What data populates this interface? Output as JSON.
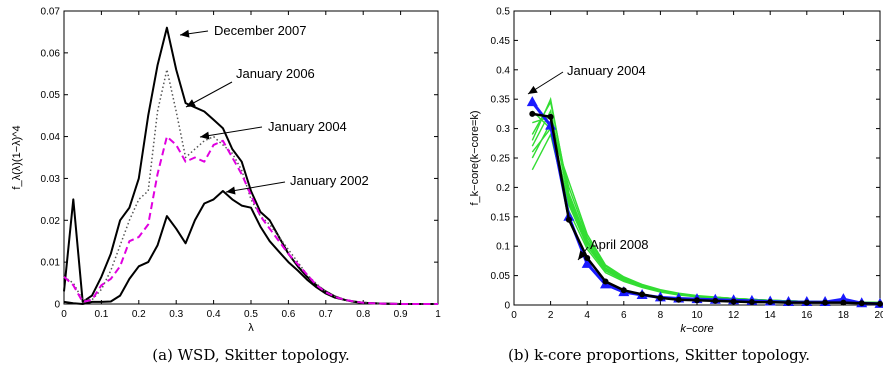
{
  "chart_data": [
    {
      "type": "line",
      "caption": "(a) WSD, Skitter topology.",
      "xlabel": "λ",
      "ylabel": "f_λ(λ)(1−λ)^4",
      "xlim": [
        0,
        1
      ],
      "ylim": [
        0,
        0.07
      ],
      "xticks": [
        "0",
        "0.1",
        "0.2",
        "0.3",
        "0.4",
        "0.5",
        "0.6",
        "0.7",
        "0.8",
        "0.9",
        "1"
      ],
      "yticks": [
        "0",
        "0.01",
        "0.02",
        "0.03",
        "0.04",
        "0.05",
        "0.06",
        "0.07"
      ],
      "annotations": [
        "December 2007",
        "January 2006",
        "January 2004",
        "January 2002"
      ],
      "series": [
        {
          "color": "#000000",
          "style": "solid",
          "x": [
            0,
            0.025,
            0.05,
            0.075,
            0.1,
            0.125,
            0.15,
            0.175,
            0.2,
            0.225,
            0.25,
            0.275,
            0.3,
            0.325,
            0.35,
            0.375,
            0.4,
            0.425,
            0.45,
            0.475,
            0.5,
            0.525,
            0.55,
            0.575,
            0.6,
            0.625,
            0.65,
            0.675,
            0.7,
            0.725,
            0.75,
            0.775,
            0.8,
            0.825,
            0.85,
            0.9,
            1
          ],
          "y": [
            0.0005,
            0.0002,
            0,
            0.0005,
            0.0005,
            0.0006,
            0.002,
            0.006,
            0.009,
            0.01,
            0.014,
            0.021,
            0.018,
            0.0145,
            0.02,
            0.024,
            0.025,
            0.027,
            0.025,
            0.0235,
            0.023,
            0.0185,
            0.015,
            0.0125,
            0.01,
            0.008,
            0.0058,
            0.004,
            0.0025,
            0.0015,
            0.001,
            0.0005,
            0.0003,
            0.0002,
            0.0001,
            0,
            0
          ]
        },
        {
          "color": "#000000",
          "style": "solid",
          "x": [
            0,
            0.025,
            0.05,
            0.075,
            0.1,
            0.125,
            0.15,
            0.175,
            0.2,
            0.225,
            0.25,
            0.275,
            0.3,
            0.325,
            0.35,
            0.375,
            0.4,
            0.425,
            0.45,
            0.475,
            0.5,
            0.525,
            0.55,
            0.575,
            0.6,
            0.625,
            0.65,
            0.675,
            0.7,
            0.725,
            0.75,
            0.775,
            0.8,
            0.825,
            0.85,
            0.9,
            1
          ],
          "y": [
            0.003,
            0.025,
            0.0005,
            0.002,
            0.0065,
            0.012,
            0.02,
            0.023,
            0.03,
            0.045,
            0.057,
            0.066,
            0.056,
            0.048,
            0.047,
            0.046,
            0.044,
            0.042,
            0.037,
            0.034,
            0.027,
            0.022,
            0.02,
            0.016,
            0.012,
            0.009,
            0.0065,
            0.0045,
            0.003,
            0.0018,
            0.001,
            0.0006,
            0.0003,
            0.0002,
            0.0001,
            0,
            0
          ]
        },
        {
          "color": "#555555",
          "style": "dotted",
          "x": [
            0,
            0.025,
            0.05,
            0.075,
            0.1,
            0.125,
            0.15,
            0.175,
            0.2,
            0.225,
            0.25,
            0.275,
            0.3,
            0.325,
            0.35,
            0.375,
            0.4,
            0.425,
            0.45,
            0.475,
            0.5,
            0.525,
            0.55,
            0.575,
            0.6,
            0.625,
            0.65,
            0.675,
            0.7,
            0.725,
            0.75,
            0.775,
            0.8,
            0.825,
            0.85,
            0.9,
            1
          ],
          "y": [
            0.0065,
            0.005,
            0.001,
            0.001,
            0.0035,
            0.008,
            0.014,
            0.02,
            0.025,
            0.027,
            0.046,
            0.056,
            0.046,
            0.035,
            0.037,
            0.039,
            0.04,
            0.038,
            0.036,
            0.032,
            0.025,
            0.021,
            0.019,
            0.016,
            0.013,
            0.01,
            0.007,
            0.0048,
            0.003,
            0.0018,
            0.001,
            0.0006,
            0.0003,
            0.0002,
            0.0001,
            0,
            0
          ]
        },
        {
          "color": "#e000e0",
          "style": "dashed",
          "x": [
            0,
            0.025,
            0.05,
            0.075,
            0.1,
            0.125,
            0.15,
            0.175,
            0.2,
            0.225,
            0.25,
            0.275,
            0.3,
            0.325,
            0.35,
            0.375,
            0.4,
            0.425,
            0.45,
            0.475,
            0.5,
            0.525,
            0.55,
            0.575,
            0.6,
            0.625,
            0.65,
            0.675,
            0.7,
            0.725,
            0.75,
            0.775,
            0.8,
            0.825,
            0.85,
            0.9,
            1
          ],
          "y": [
            0.0065,
            0.0045,
            0.0005,
            0.001,
            0.0045,
            0.006,
            0.009,
            0.015,
            0.016,
            0.019,
            0.031,
            0.04,
            0.038,
            0.034,
            0.035,
            0.034,
            0.038,
            0.039,
            0.035,
            0.031,
            0.026,
            0.021,
            0.018,
            0.015,
            0.012,
            0.0095,
            0.007,
            0.0045,
            0.0028,
            0.0017,
            0.001,
            0.0006,
            0.0003,
            0.0002,
            0.0001,
            0,
            0
          ]
        }
      ]
    },
    {
      "type": "line",
      "caption": "(b) k-core proportions, Skitter topology.",
      "xlabel": "k−core",
      "ylabel": "f_k−core(k−core=k)",
      "xlim": [
        0,
        20
      ],
      "ylim": [
        0,
        0.5
      ],
      "xticks": [
        "0",
        "2",
        "4",
        "6",
        "8",
        "10",
        "12",
        "14",
        "16",
        "18",
        "20"
      ],
      "yticks": [
        "0",
        "0.05",
        "0.1",
        "0.15",
        "0.2",
        "0.25",
        "0.3",
        "0.35",
        "0.4",
        "0.45",
        "0.5"
      ],
      "annotations": [
        "January 2004",
        "April 2008"
      ],
      "green_series": [
        {
          "x": [
            1,
            2,
            3,
            4,
            5,
            6,
            7,
            8,
            9,
            10,
            12,
            14,
            16,
            18,
            20
          ],
          "y": [
            0.23,
            0.29,
            0.16,
            0.095,
            0.055,
            0.04,
            0.03,
            0.022,
            0.017,
            0.014,
            0.01,
            0.007,
            0.006,
            0.005,
            0.004
          ]
        },
        {
          "x": [
            1,
            2,
            3,
            4,
            5,
            6,
            7,
            8,
            9,
            10,
            12,
            14,
            16,
            18,
            20
          ],
          "y": [
            0.25,
            0.31,
            0.17,
            0.1,
            0.058,
            0.042,
            0.031,
            0.023,
            0.018,
            0.014,
            0.01,
            0.007,
            0.006,
            0.005,
            0.004
          ]
        },
        {
          "x": [
            1,
            2,
            3,
            4,
            5,
            6,
            7,
            8,
            9,
            10,
            12,
            14,
            16,
            18,
            20
          ],
          "y": [
            0.27,
            0.33,
            0.18,
            0.105,
            0.06,
            0.044,
            0.032,
            0.024,
            0.018,
            0.015,
            0.011,
            0.008,
            0.006,
            0.005,
            0.004
          ]
        },
        {
          "x": [
            1,
            2,
            3,
            4,
            5,
            6,
            7,
            8,
            9,
            10,
            12,
            14,
            16,
            18,
            20
          ],
          "y": [
            0.29,
            0.345,
            0.19,
            0.11,
            0.063,
            0.046,
            0.033,
            0.025,
            0.019,
            0.015,
            0.011,
            0.008,
            0.006,
            0.005,
            0.004
          ]
        },
        {
          "x": [
            1,
            2,
            3,
            4,
            5,
            6,
            7,
            8,
            9,
            10,
            12,
            14,
            16,
            18,
            20
          ],
          "y": [
            0.31,
            0.32,
            0.2,
            0.115,
            0.066,
            0.047,
            0.034,
            0.025,
            0.019,
            0.015,
            0.011,
            0.008,
            0.006,
            0.005,
            0.004
          ]
        },
        {
          "x": [
            1,
            2,
            3,
            4,
            5,
            6,
            7,
            8,
            9,
            10,
            12,
            14,
            16,
            18,
            20
          ],
          "y": [
            0.33,
            0.3,
            0.21,
            0.12,
            0.068,
            0.048,
            0.035,
            0.026,
            0.02,
            0.016,
            0.011,
            0.008,
            0.006,
            0.005,
            0.004
          ]
        },
        {
          "x": [
            1,
            2,
            3,
            4,
            5,
            6,
            7,
            8,
            9,
            10,
            12,
            14,
            16,
            18,
            20
          ],
          "y": [
            0.28,
            0.35,
            0.185,
            0.108,
            0.062,
            0.045,
            0.033,
            0.024,
            0.019,
            0.015,
            0.011,
            0.008,
            0.006,
            0.005,
            0.004
          ]
        },
        {
          "x": [
            1,
            2,
            3,
            4,
            5,
            6,
            7,
            8,
            9,
            10,
            12,
            14,
            16,
            18,
            20
          ],
          "y": [
            0.26,
            0.3,
            0.175,
            0.1,
            0.06,
            0.043,
            0.032,
            0.023,
            0.018,
            0.014,
            0.01,
            0.007,
            0.006,
            0.005,
            0.004
          ]
        }
      ],
      "blue_series": {
        "x": [
          1,
          2,
          3,
          4,
          5,
          6,
          7,
          8,
          9,
          10,
          11,
          12,
          13,
          14,
          15,
          16,
          17,
          18,
          19,
          20
        ],
        "y": [
          0.345,
          0.305,
          0.15,
          0.07,
          0.035,
          0.022,
          0.017,
          0.013,
          0.011,
          0.01,
          0.009,
          0.008,
          0.007,
          0.006,
          0.005,
          0.005,
          0.005,
          0.01,
          0.003,
          0.002
        ]
      },
      "black_series": {
        "x": [
          1,
          2,
          3,
          4,
          5,
          6,
          7,
          8,
          9,
          10,
          11,
          12,
          13,
          14,
          15,
          16,
          17,
          18,
          19,
          20
        ],
        "y": [
          0.325,
          0.32,
          0.145,
          0.08,
          0.04,
          0.025,
          0.018,
          0.012,
          0.009,
          0.008,
          0.007,
          0.006,
          0.005,
          0.005,
          0.004,
          0.004,
          0.004,
          0.004,
          0.003,
          0.002
        ]
      }
    }
  ]
}
